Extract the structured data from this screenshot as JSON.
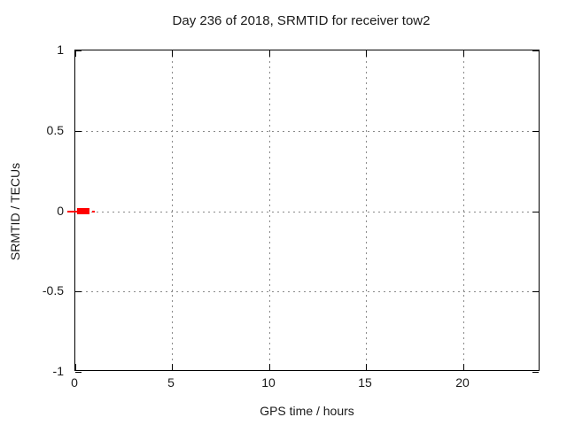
{
  "chart_data": {
    "type": "line",
    "title": "Day 236 of 2018, SRMTID for receiver tow2",
    "xlabel": "GPS time / hours",
    "ylabel": "SRMTID / TECUs",
    "xlim": [
      0,
      24
    ],
    "ylim": [
      -1,
      1
    ],
    "x_ticks": [
      {
        "v": 0,
        "label": "0"
      },
      {
        "v": 5,
        "label": "5"
      },
      {
        "v": 10,
        "label": "10"
      },
      {
        "v": 15,
        "label": "15"
      },
      {
        "v": 20,
        "label": "20"
      }
    ],
    "y_ticks": [
      {
        "v": 1,
        "label": "1"
      },
      {
        "v": 0.5,
        "label": "0.5"
      },
      {
        "v": 0,
        "label": "0"
      },
      {
        "v": -0.5,
        "label": "-0.5"
      },
      {
        "v": -1,
        "label": "-1"
      }
    ],
    "grid": true,
    "grid_color": "#8a8a8a",
    "border_color": "#000000",
    "legend": null,
    "series": [
      {
        "name": "SRMTID",
        "color": "#ff0000",
        "y": 0,
        "marks": [
          {
            "kind": "thin-line",
            "x1": -0.41,
            "x2": 0.14,
            "y": 0,
            "thickness_px": 2
          },
          {
            "kind": "thick-block",
            "x1": 0.09,
            "x2": 0.73,
            "y": 0,
            "thickness_px": 7
          },
          {
            "kind": "thin-dash",
            "x1": 0.86,
            "x2": 1.0,
            "y": 0,
            "thickness_px": 2
          }
        ]
      }
    ]
  }
}
